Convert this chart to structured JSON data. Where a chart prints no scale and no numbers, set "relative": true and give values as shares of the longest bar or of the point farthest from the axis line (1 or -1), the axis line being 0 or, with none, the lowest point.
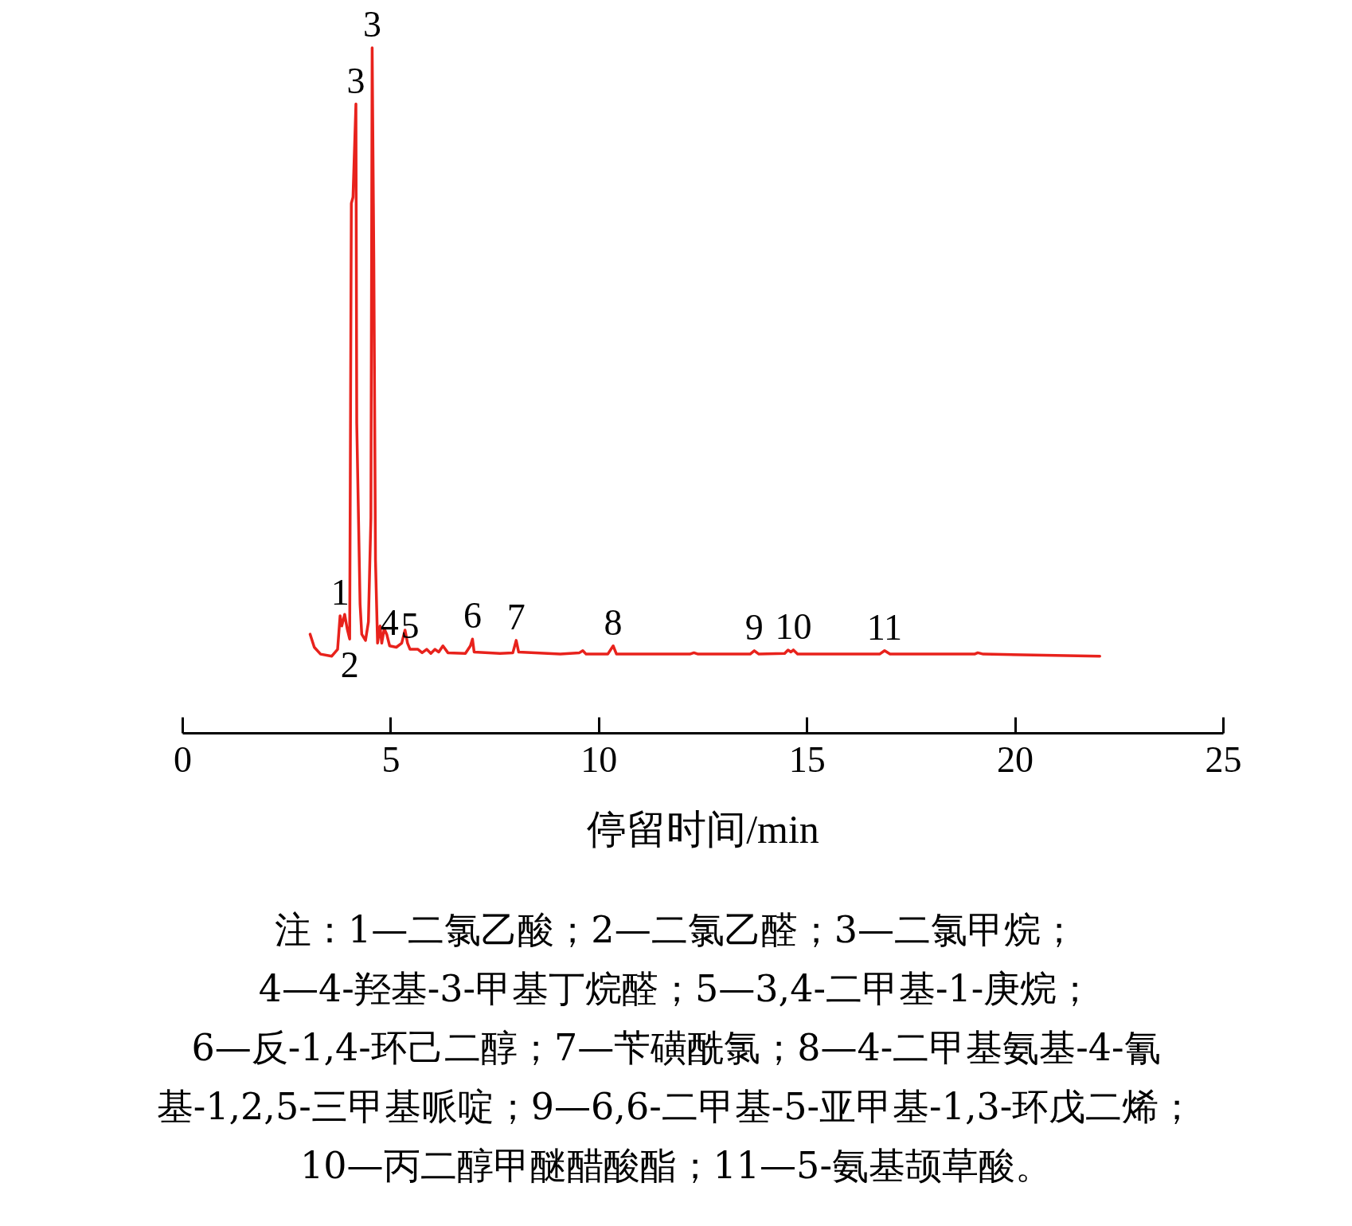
{
  "chart_data": {
    "type": "line",
    "relative": true,
    "xlabel": "停留时间/min",
    "xlim": [
      0,
      25
    ],
    "xticks": [
      0,
      5,
      10,
      15,
      20,
      25
    ],
    "grid": false,
    "legend": false,
    "marker": "none",
    "line_style": "solid",
    "series": [
      {
        "color": "#e8221c",
        "x": [
          3.07,
          3.17,
          3.32,
          3.59,
          3.73,
          3.79,
          3.83,
          3.9,
          3.96,
          4.02,
          4.06,
          4.1,
          4.17,
          4.19,
          4.27,
          4.31,
          4.4,
          4.47,
          4.53,
          4.56,
          4.6,
          4.64,
          4.69,
          4.75,
          4.79,
          4.85,
          4.91,
          4.98,
          5.14,
          5.27,
          5.35,
          5.41,
          5.47,
          5.66,
          5.76,
          5.87,
          5.97,
          6.07,
          6.16,
          6.26,
          6.38,
          6.8,
          6.92,
          6.97,
          7.01,
          7.63,
          7.94,
          8.02,
          8.08,
          9.08,
          9.54,
          9.62,
          9.7,
          10.22,
          10.35,
          10.43,
          12.19,
          12.29,
          12.39,
          13.64,
          13.74,
          13.85,
          14.47,
          14.55,
          14.62,
          14.68,
          14.78,
          16.75,
          16.87,
          17.0,
          19.03,
          19.11,
          19.24,
          22.04
        ],
        "values": [
          0.144,
          0.125,
          0.115,
          0.112,
          0.122,
          0.171,
          0.156,
          0.173,
          0.152,
          0.137,
          0.773,
          0.782,
          0.918,
          0.452,
          0.188,
          0.144,
          0.135,
          0.162,
          0.314,
          1,
          0.691,
          0.252,
          0.131,
          0.156,
          0.131,
          0.152,
          0.144,
          0.127,
          0.125,
          0.131,
          0.15,
          0.131,
          0.122,
          0.122,
          0.117,
          0.122,
          0.116,
          0.122,
          0.118,
          0.127,
          0.117,
          0.116,
          0.127,
          0.137,
          0.118,
          0.116,
          0.117,
          0.135,
          0.118,
          0.115,
          0.117,
          0.12,
          0.115,
          0.115,
          0.127,
          0.115,
          0.115,
          0.117,
          0.115,
          0.115,
          0.12,
          0.115,
          0.116,
          0.121,
          0.118,
          0.121,
          0.115,
          0.115,
          0.12,
          0.115,
          0.115,
          0.117,
          0.115,
          0.112
        ]
      }
    ],
    "annotations": [
      {
        "text": "1",
        "x": 3.79,
        "y": 0.171
      },
      {
        "text": "2",
        "x": 4.02,
        "y": 0.137
      },
      {
        "text": "3",
        "x": 4.17,
        "y": 0.918
      },
      {
        "text": "3",
        "x": 4.56,
        "y": 1
      },
      {
        "text": "4",
        "x": 4.98,
        "y": 0.127
      },
      {
        "text": "5",
        "x": 5.47,
        "y": 0.122
      },
      {
        "text": "6",
        "x": 6.97,
        "y": 0.137
      },
      {
        "text": "7",
        "x": 8.02,
        "y": 0.135
      },
      {
        "text": "8",
        "x": 10.35,
        "y": 0.127
      },
      {
        "text": "9",
        "x": 13.74,
        "y": 0.12
      },
      {
        "text": "10",
        "x": 14.68,
        "y": 0.121
      },
      {
        "text": "11",
        "x": 16.87,
        "y": 0.12
      },
      "注：1—二氯乙酸；2—二氯乙醛；3—二氯甲烷；",
      "4—4-羟基-3-甲基丁烷醛；5—3,4-二甲基-1-庚烷；",
      "6—反-1,4-环己二醇；7—苄磺酰氯；8—4-二甲基氨基-4-氰",
      "基-1,2,5-三甲基哌啶；9—6,6-二甲基-5-亚甲基-1,3-环戊二烯；",
      "10—丙二醇甲醚醋酸酯；11—5-氨基颉草酸。"
    ]
  }
}
